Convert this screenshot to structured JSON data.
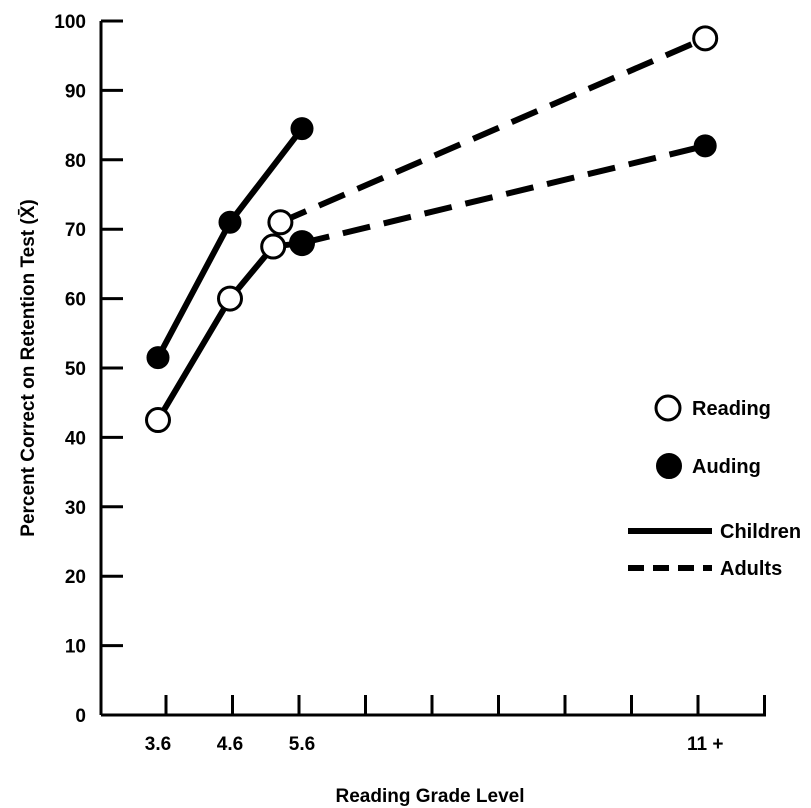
{
  "chart_data": {
    "type": "line",
    "xlabel": "Reading Grade Level",
    "ylabel": "Percent Correct on Retention Test (X̄)",
    "ylim": [
      0,
      100
    ],
    "yticks": [
      "0",
      "10",
      "20",
      "30",
      "40",
      "50",
      "60",
      "70",
      "80",
      "90",
      "100"
    ],
    "xtick_labels": [
      {
        "x": 3.6,
        "label": "3.6"
      },
      {
        "x": 4.6,
        "label": "4.6"
      },
      {
        "x": 5.6,
        "label": "5.6"
      },
      {
        "x": 11.2,
        "label": "11 +"
      }
    ],
    "grid": false,
    "legend_position": "right",
    "legend": [
      {
        "label": "Reading",
        "symbol": "open-circle"
      },
      {
        "label": "Auding",
        "symbol": "filled-circle"
      },
      {
        "label": "Children",
        "symbol": "solid-line"
      },
      {
        "label": "Adults",
        "symbol": "dashed-line"
      }
    ],
    "series": [
      {
        "mode": "Auding",
        "group": "Children",
        "x": [
          3.6,
          4.6,
          5.6
        ],
        "y": [
          51.5,
          71,
          84.5
        ]
      },
      {
        "mode": "Reading",
        "group": "Children",
        "x": [
          3.6,
          4.6,
          5.2,
          5.6
        ],
        "y": [
          42.5,
          60,
          67.5,
          68
        ]
      },
      {
        "mode": "Reading",
        "group": "Adults",
        "x": [
          5.3,
          11.2
        ],
        "y": [
          71,
          97.5
        ]
      },
      {
        "mode": "Auding",
        "group": "Adults",
        "x": [
          5.6,
          11.2
        ],
        "y": [
          68,
          82
        ]
      }
    ],
    "colors": {
      "ink": "#000000",
      "background": "#ffffff"
    }
  }
}
